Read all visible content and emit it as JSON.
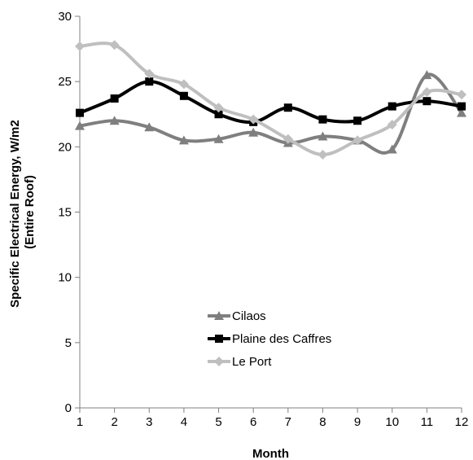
{
  "chart_data": {
    "type": "line",
    "title": "",
    "xlabel": "Month",
    "ylabel_lines": [
      "Specific Electrical Energy, W/m2",
      "(Entire Roof)"
    ],
    "x": [
      1,
      2,
      3,
      4,
      5,
      6,
      7,
      8,
      9,
      10,
      11,
      12
    ],
    "ylim": [
      0,
      30
    ],
    "yticks": [
      0,
      5,
      10,
      15,
      20,
      25,
      30
    ],
    "grid": false,
    "smooth": true,
    "legend_position": "lower-center",
    "series": [
      {
        "name": "Cilaos",
        "color": "#7f7f7f",
        "marker": "triangle",
        "values": [
          21.6,
          22.0,
          21.5,
          20.5,
          20.6,
          21.1,
          20.3,
          20.8,
          20.5,
          19.8,
          25.5,
          22.6
        ]
      },
      {
        "name": "Plaine des Caffres",
        "color": "#000000",
        "marker": "square",
        "values": [
          22.6,
          23.7,
          25.0,
          23.9,
          22.5,
          21.9,
          23.0,
          22.1,
          22.0,
          23.1,
          23.5,
          23.1
        ]
      },
      {
        "name": "Le Port",
        "color": "#bfbfbf",
        "marker": "diamond",
        "values": [
          27.7,
          27.8,
          25.6,
          24.8,
          23.0,
          22.1,
          20.6,
          19.4,
          20.5,
          21.7,
          24.2,
          24.0
        ]
      }
    ]
  }
}
